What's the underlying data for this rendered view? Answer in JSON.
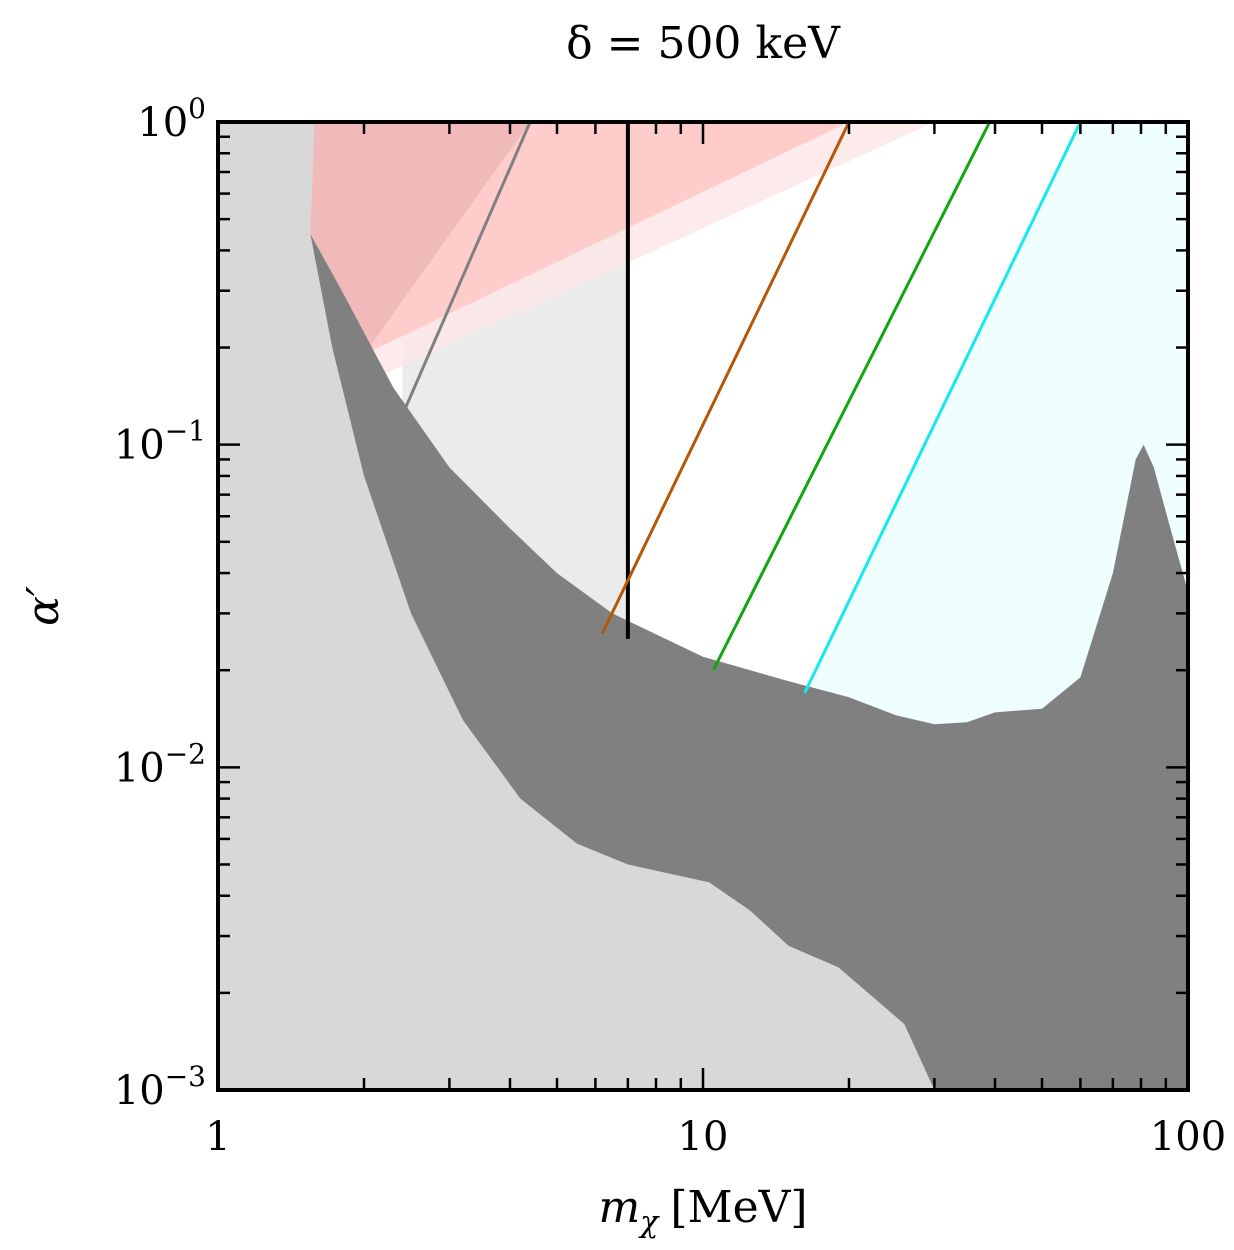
{
  "chart_data": {
    "type": "area",
    "title": "δ = 500 keV",
    "xlabel": "m_χ [MeV]",
    "xlabel_main": "m",
    "xlabel_sub": "χ",
    "xlabel_unit": "[MeV]",
    "ylabel": "α′",
    "xscale": "log",
    "yscale": "log",
    "xlim": [
      1,
      100
    ],
    "ylim": [
      0.001,
      1
    ],
    "x_ticks": [
      {
        "value": 1,
        "label": "1"
      },
      {
        "value": 10,
        "label": "10"
      },
      {
        "value": 100,
        "label": "100"
      }
    ],
    "y_ticks": [
      {
        "value": 1,
        "base": "10",
        "exp": "0"
      },
      {
        "value": 0.1,
        "base": "10",
        "exp": "−1"
      },
      {
        "value": 0.01,
        "base": "10",
        "exp": "−2"
      },
      {
        "value": 0.001,
        "base": "10",
        "exp": "−3"
      }
    ],
    "grid": false,
    "colors": {
      "light_gray": "#d8d8d8",
      "dark_gray": "#808080",
      "pale_gray": "#ebebeb",
      "red_dark": "#f0baba",
      "red_light": "#ffcccc",
      "pink_band": "#fde8e8",
      "cyan_fill": "#effefe",
      "gray_line": "#808080",
      "black_line": "#000000",
      "orange_line": "#b35806",
      "green_line": "#11a611",
      "cyan_line": "#17e8ee"
    },
    "regions": {
      "light_gray_region": [
        [
          1,
          1
        ],
        [
          1.58,
          1
        ],
        [
          1.55,
          0.45
        ],
        [
          1.72,
          0.2
        ],
        [
          2.0,
          0.08
        ],
        [
          2.5,
          0.03
        ],
        [
          3.2,
          0.014
        ],
        [
          4.2,
          0.008
        ],
        [
          5.5,
          0.0058
        ],
        [
          7,
          0.005
        ],
        [
          10.3,
          0.0044
        ],
        [
          12.5,
          0.0036
        ],
        [
          15,
          0.0028
        ],
        [
          19,
          0.0024
        ],
        [
          26,
          0.0016
        ],
        [
          30,
          0.001
        ],
        [
          1,
          0.001
        ]
      ],
      "dark_gray_region": [
        [
          1.55,
          0.45
        ],
        [
          1.8,
          0.3
        ],
        [
          2.3,
          0.15
        ],
        [
          3,
          0.085
        ],
        [
          4,
          0.055
        ],
        [
          5,
          0.04
        ],
        [
          6.5,
          0.03
        ],
        [
          10,
          0.022
        ],
        [
          15,
          0.0185
        ],
        [
          20,
          0.0165
        ],
        [
          25,
          0.0145
        ],
        [
          30,
          0.0136
        ],
        [
          35,
          0.0138
        ],
        [
          40,
          0.0148
        ],
        [
          50,
          0.0152
        ],
        [
          60,
          0.019
        ],
        [
          70,
          0.04
        ],
        [
          78,
          0.09
        ],
        [
          81,
          0.1
        ],
        [
          85,
          0.085
        ],
        [
          92,
          0.055
        ],
        [
          100,
          0.035
        ],
        [
          100,
          0.001
        ],
        [
          30,
          0.001
        ],
        [
          26,
          0.0016
        ],
        [
          19,
          0.0024
        ],
        [
          15,
          0.0028
        ],
        [
          12.5,
          0.0036
        ],
        [
          10.3,
          0.0044
        ],
        [
          7,
          0.005
        ],
        [
          5.5,
          0.0058
        ],
        [
          4.2,
          0.008
        ],
        [
          3.2,
          0.014
        ],
        [
          2.5,
          0.03
        ],
        [
          2.0,
          0.08
        ],
        [
          1.72,
          0.2
        ]
      ],
      "pale_gray_region": [
        [
          2.4,
          1
        ],
        [
          7,
          1
        ],
        [
          7,
          0.025
        ],
        [
          6.5,
          0.03
        ],
        [
          5,
          0.04
        ],
        [
          4,
          0.055
        ],
        [
          3,
          0.085
        ],
        [
          2.4,
          0.12
        ]
      ],
      "pink_band_region": [
        [
          2,
          0.19
        ],
        [
          20,
          1
        ],
        [
          30,
          1
        ],
        [
          2.1,
          0.16
        ]
      ],
      "red_upper_region": [
        [
          1.58,
          1
        ],
        [
          20,
          1
        ],
        [
          2,
          0.19
        ],
        [
          1.7,
          0.27
        ],
        [
          1.6,
          0.4
        ],
        [
          1.55,
          0.45
        ]
      ],
      "cyan_region": [
        [
          60,
          1
        ],
        [
          100,
          1
        ],
        [
          100,
          0.035
        ],
        [
          92,
          0.055
        ],
        [
          85,
          0.085
        ],
        [
          81,
          0.1
        ],
        [
          78,
          0.09
        ],
        [
          70,
          0.04
        ],
        [
          60,
          0.019
        ],
        [
          50,
          0.0152
        ],
        [
          40,
          0.0148
        ],
        [
          35,
          0.0138
        ],
        [
          30,
          0.0136
        ],
        [
          25,
          0.0145
        ],
        [
          20,
          0.0165
        ],
        [
          16.2,
          0.017
        ]
      ]
    },
    "series": [
      {
        "color": "#808080",
        "x": [
          2.35,
          4.4
        ],
        "y": [
          0.115,
          1
        ]
      },
      {
        "color": "#000000",
        "x": [
          7,
          7
        ],
        "y": [
          0.025,
          1
        ]
      },
      {
        "color": "#b35806",
        "x": [
          6.2,
          20
        ],
        "y": [
          0.026,
          1
        ]
      },
      {
        "color": "#11a611",
        "x": [
          10.5,
          39
        ],
        "y": [
          0.02,
          1
        ]
      },
      {
        "color": "#17e8ee",
        "x": [
          16.2,
          60
        ],
        "y": [
          0.017,
          1
        ]
      }
    ]
  }
}
